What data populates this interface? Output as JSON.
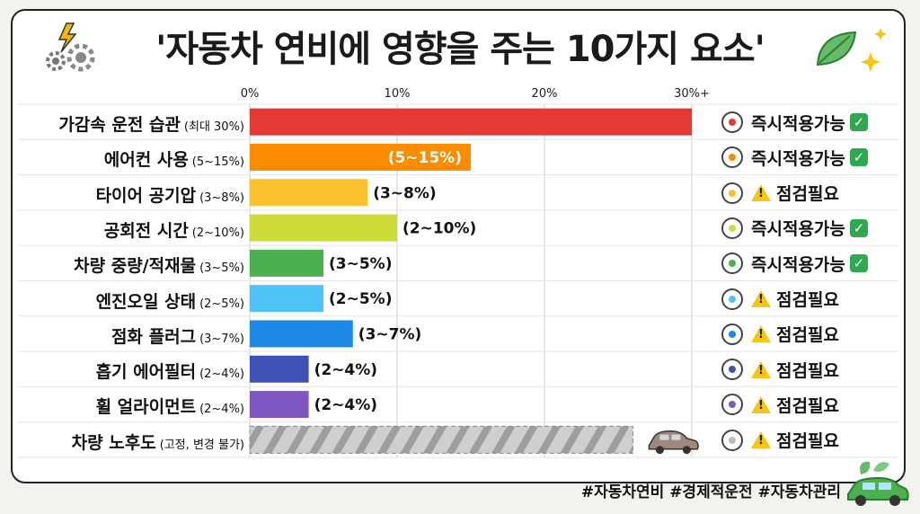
{
  "title": "'자동차 연비에 영향을 주는 10가지 요소'",
  "hashtags": "#자동차연비 #경제적운전 #자동차관리",
  "chart_data": {
    "type": "bar",
    "orientation": "horizontal",
    "title": "'자동차 연비에 영향을 주는 10가지 요소'",
    "x_ticks": [
      "0%",
      "10%",
      "20%",
      "30%+"
    ],
    "xlim": [
      0,
      30
    ],
    "grid": true,
    "rows": [
      {
        "label": "가감속 운전 습관",
        "range": "(최대 30%)",
        "value": 30,
        "bar_label": "",
        "color": "#e53935",
        "status": "즉시적용가능",
        "applicable": true,
        "status_icon": "fuel-gauge-icon"
      },
      {
        "label": "에어컨 사용",
        "range": "(5~15%)",
        "value": 15,
        "bar_label": "(5~15%)",
        "color": "#fb8c00",
        "status": "즉시적용가능",
        "applicable": true,
        "status_icon": "air-conditioner-icon"
      },
      {
        "label": "타이어 공기압",
        "range": "(3~8%)",
        "value": 8,
        "bar_label": "(3~8%)",
        "color": "#fbc02d",
        "status": "점검필요",
        "applicable": false,
        "status_icon": "tire-pressure-icon"
      },
      {
        "label": "공회전 시간",
        "range": "(2~10%)",
        "value": 10,
        "bar_label": "(2~10%)",
        "color": "#cddc39",
        "status": "즉시적용가능",
        "applicable": true,
        "status_icon": "clock-icon"
      },
      {
        "label": "차량 중량/적재물",
        "range": "(3~5%)",
        "value": 5,
        "bar_label": "(3~5%)",
        "color": "#4caf50",
        "status": "즉시적용가능",
        "applicable": true,
        "status_icon": "cargo-box-icon"
      },
      {
        "label": "엔진오일 상태",
        "range": "(2~5%)",
        "value": 5,
        "bar_label": "(2~5%)",
        "color": "#4fc3f7",
        "status": "점검필요",
        "applicable": false,
        "status_icon": "oil-drop-icon"
      },
      {
        "label": "점화 플러그",
        "range": "(3~7%)",
        "value": 7,
        "bar_label": "(3~7%)",
        "color": "#1e88e5",
        "status": "점검필요",
        "applicable": false,
        "status_icon": "spark-plug-icon"
      },
      {
        "label": "흡기 에어필터",
        "range": "(2~4%)",
        "value": 4,
        "bar_label": "(2~4%)",
        "color": "#3f51b5",
        "status": "점검필요",
        "applicable": false,
        "status_icon": "air-filter-icon"
      },
      {
        "label": "휠 얼라이먼트",
        "range": "(2~4%)",
        "value": 4,
        "bar_label": "(2~4%)",
        "color": "#7e57c2",
        "status": "점검필요",
        "applicable": false,
        "status_icon": "wheel-alignment-icon"
      },
      {
        "label": "차량 노후도",
        "range": "(고정, 변경 불가)",
        "value": 26,
        "bar_label": "",
        "color": "#bdbdbd",
        "status": "점검필요",
        "applicable": false,
        "status_icon": "car-icon"
      }
    ]
  }
}
